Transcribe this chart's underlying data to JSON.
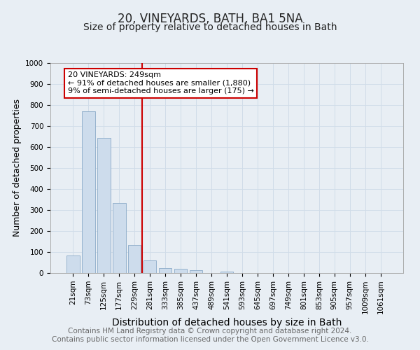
{
  "title": "20, VINEYARDS, BATH, BA1 5NA",
  "subtitle": "Size of property relative to detached houses in Bath",
  "xlabel": "Distribution of detached houses by size in Bath",
  "ylabel": "Number of detached properties",
  "bar_labels": [
    "21sqm",
    "73sqm",
    "125sqm",
    "177sqm",
    "229sqm",
    "281sqm",
    "333sqm",
    "385sqm",
    "437sqm",
    "489sqm",
    "541sqm",
    "593sqm",
    "645sqm",
    "697sqm",
    "749sqm",
    "801sqm",
    "853sqm",
    "905sqm",
    "957sqm",
    "1009sqm",
    "1061sqm"
  ],
  "bar_values": [
    83,
    770,
    643,
    335,
    135,
    60,
    24,
    20,
    12,
    0,
    8,
    0,
    0,
    0,
    0,
    0,
    0,
    0,
    0,
    0,
    0
  ],
  "bar_color": "#cddcec",
  "bar_edge_color": "#8baac8",
  "grid_color": "#d0dce8",
  "background_color": "#e8eef4",
  "vline_x": 4.5,
  "vline_color": "#cc0000",
  "annotation_text": "20 VINEYARDS: 249sqm\n← 91% of detached houses are smaller (1,880)\n9% of semi-detached houses are larger (175) →",
  "annotation_box_facecolor": "#ffffff",
  "annotation_box_edge": "#cc0000",
  "ylim": [
    0,
    1000
  ],
  "yticks": [
    0,
    100,
    200,
    300,
    400,
    500,
    600,
    700,
    800,
    900,
    1000
  ],
  "footer_text": "Contains HM Land Registry data © Crown copyright and database right 2024.\nContains public sector information licensed under the Open Government Licence v3.0.",
  "title_fontsize": 12,
  "subtitle_fontsize": 10,
  "footer_fontsize": 7.5,
  "tick_fontsize": 7.5,
  "ylabel_fontsize": 9,
  "xlabel_fontsize": 10
}
